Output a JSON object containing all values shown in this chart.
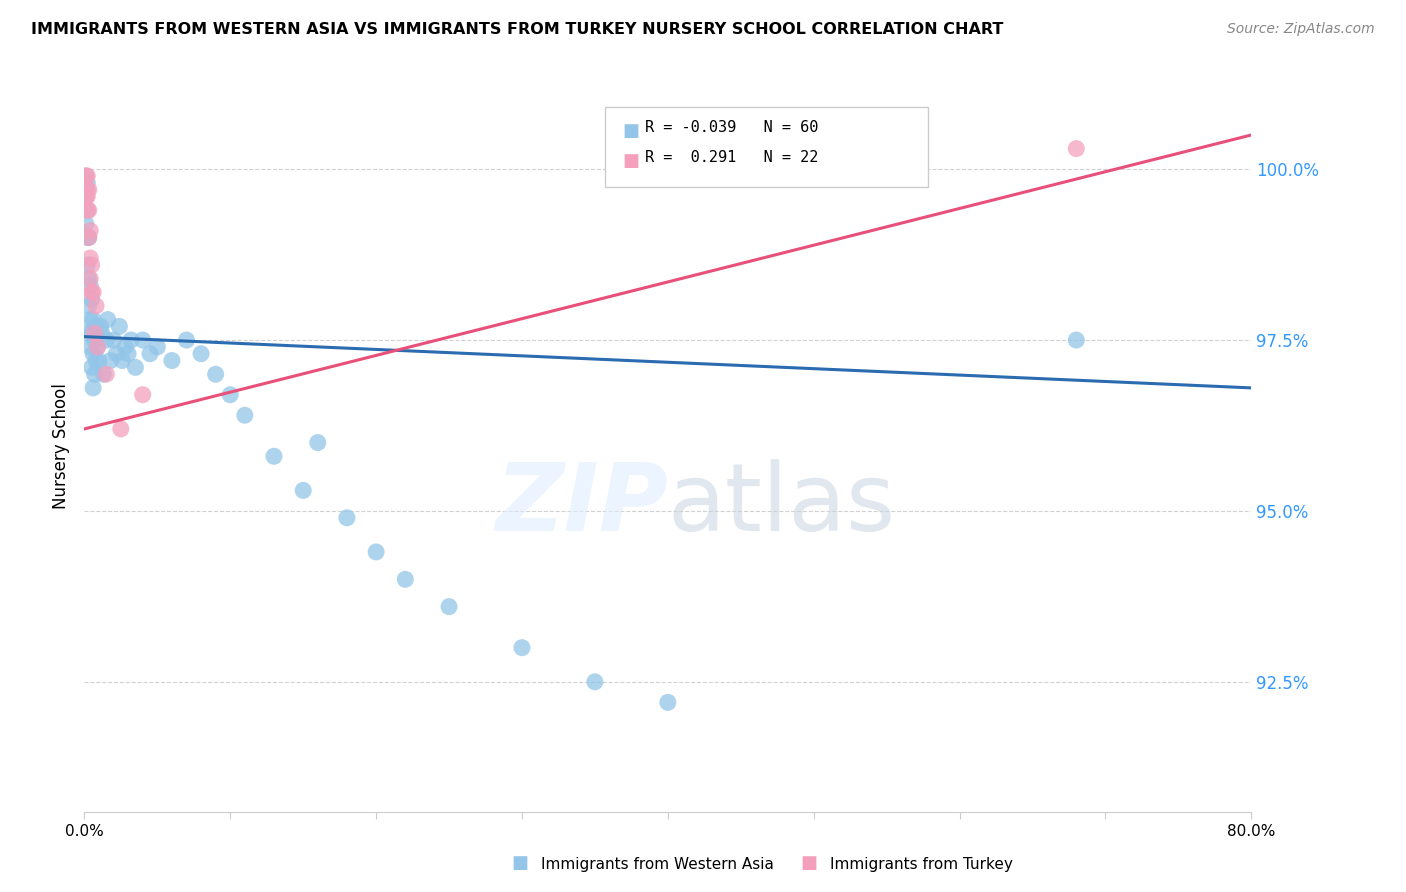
{
  "title": "IMMIGRANTS FROM WESTERN ASIA VS IMMIGRANTS FROM TURKEY NURSERY SCHOOL CORRELATION CHART",
  "source": "Source: ZipAtlas.com",
  "ylabel": "Nursery School",
  "x_min": 0.0,
  "x_max": 0.8,
  "y_min": 0.906,
  "y_max": 1.013,
  "x_ticks": [
    0.0,
    0.1,
    0.2,
    0.3,
    0.4,
    0.5,
    0.6,
    0.7,
    0.8
  ],
  "x_tick_labels": [
    "0.0%",
    "",
    "",
    "",
    "",
    "",
    "",
    "",
    "80.0%"
  ],
  "y_ticks": [
    0.925,
    0.95,
    0.975,
    1.0
  ],
  "y_tick_labels": [
    "92.5%",
    "95.0%",
    "97.5%",
    "100.0%"
  ],
  "legend_label1_r": "R = -0.039",
  "legend_label1_n": "N = 60",
  "legend_label2_r": "R =  0.291",
  "legend_label2_n": "N = 22",
  "legend_label1_short": "Immigrants from Western Asia",
  "legend_label2_short": "Immigrants from Turkey",
  "color_blue": "#92C5E8",
  "color_pink": "#F4A0BC",
  "color_blue_line": "#2B6CB0",
  "color_pink_line": "#E8507A",
  "background_color": "#FFFFFF",
  "grid_color": "#CCCCCC",
  "blue_trend_x": [
    0.0,
    0.8
  ],
  "blue_trend_y": [
    0.9755,
    0.968
  ],
  "pink_trend_x": [
    0.0,
    0.8
  ],
  "pink_trend_y": [
    0.962,
    1.005
  ],
  "blue_points_x": [
    0.001,
    0.001,
    0.001,
    0.002,
    0.002,
    0.002,
    0.002,
    0.003,
    0.003,
    0.003,
    0.003,
    0.004,
    0.004,
    0.004,
    0.005,
    0.005,
    0.005,
    0.006,
    0.006,
    0.006,
    0.007,
    0.007,
    0.008,
    0.008,
    0.009,
    0.01,
    0.011,
    0.012,
    0.013,
    0.015,
    0.016,
    0.018,
    0.02,
    0.022,
    0.024,
    0.026,
    0.028,
    0.03,
    0.032,
    0.035,
    0.04,
    0.045,
    0.05,
    0.06,
    0.07,
    0.08,
    0.09,
    0.1,
    0.11,
    0.13,
    0.15,
    0.16,
    0.18,
    0.2,
    0.22,
    0.25,
    0.3,
    0.35,
    0.4,
    0.68
  ],
  "blue_points_y": [
    0.999,
    0.996,
    0.992,
    0.998,
    0.994,
    0.99,
    0.986,
    0.99,
    0.984,
    0.98,
    0.976,
    0.983,
    0.978,
    0.974,
    0.981,
    0.976,
    0.971,
    0.978,
    0.973,
    0.968,
    0.975,
    0.97,
    0.977,
    0.972,
    0.974,
    0.972,
    0.977,
    0.976,
    0.97,
    0.975,
    0.978,
    0.972,
    0.975,
    0.973,
    0.977,
    0.972,
    0.974,
    0.973,
    0.975,
    0.971,
    0.975,
    0.973,
    0.974,
    0.972,
    0.975,
    0.973,
    0.97,
    0.967,
    0.964,
    0.958,
    0.953,
    0.96,
    0.949,
    0.944,
    0.94,
    0.936,
    0.93,
    0.925,
    0.922,
    0.975
  ],
  "pink_points_x": [
    0.001,
    0.001,
    0.002,
    0.002,
    0.002,
    0.002,
    0.003,
    0.003,
    0.003,
    0.004,
    0.004,
    0.004,
    0.005,
    0.005,
    0.006,
    0.007,
    0.008,
    0.009,
    0.015,
    0.025,
    0.04,
    0.68
  ],
  "pink_points_y": [
    0.999,
    0.996,
    0.999,
    0.997,
    0.996,
    0.994,
    0.997,
    0.994,
    0.99,
    0.991,
    0.987,
    0.984,
    0.986,
    0.982,
    0.982,
    0.976,
    0.98,
    0.974,
    0.97,
    0.962,
    0.967,
    1.003
  ]
}
